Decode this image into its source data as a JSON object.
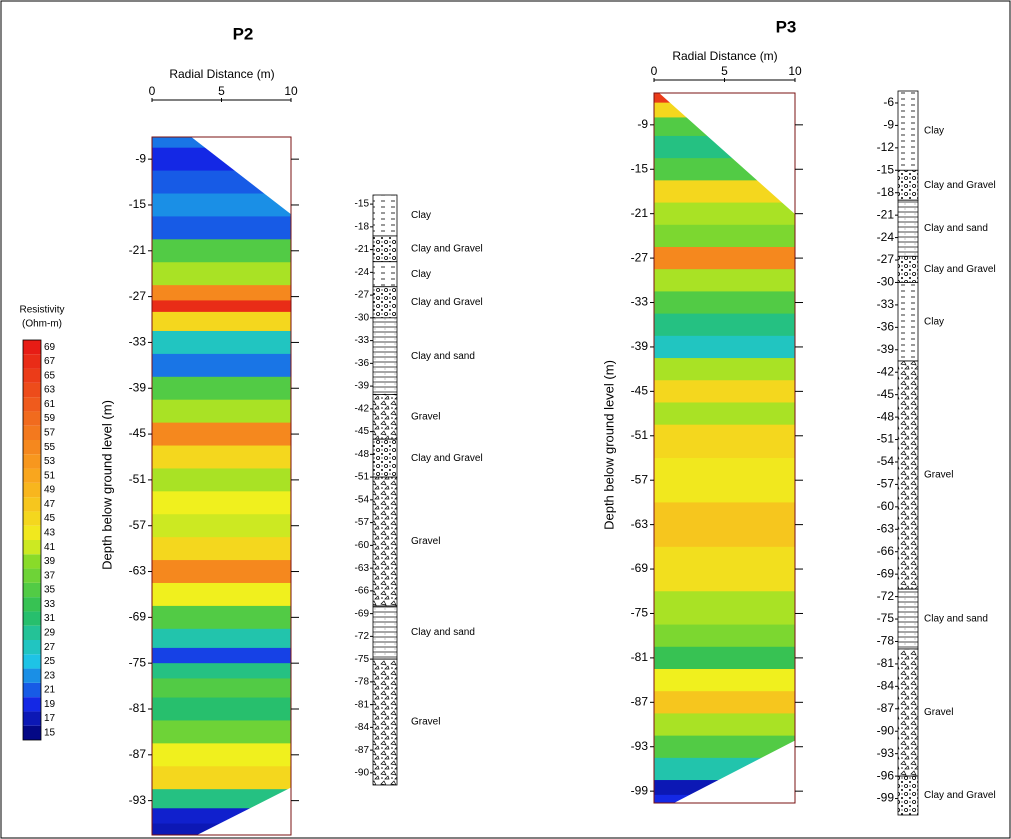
{
  "colorbar": {
    "title": "Resistivity",
    "unit": "(Ohm-m)",
    "ticks": [
      15,
      17,
      19,
      21,
      23,
      25,
      27,
      29,
      31,
      33,
      35,
      37,
      39,
      41,
      43,
      45,
      47,
      49,
      51,
      53,
      55,
      57,
      59,
      61,
      63,
      65,
      67,
      69
    ],
    "range": [
      14,
      70
    ]
  },
  "panels": [
    {
      "title": "P2",
      "x_label": "Radial Distance (m)",
      "xticks": [
        0,
        5,
        10
      ],
      "xlim": [
        0,
        10
      ],
      "y_label": "Depth below ground level (m)",
      "yticks": [
        -9,
        -15,
        -21,
        -27,
        -33,
        -39,
        -45,
        -51,
        -57,
        -63,
        -69,
        -75,
        -81,
        -87,
        -93
      ],
      "ylim": [
        -6.1,
        -97.5
      ],
      "profile": {
        "depth": [
          -6,
          -9,
          -12,
          -15,
          -18,
          -21,
          -24,
          -27,
          -28,
          -30,
          -33,
          -36,
          -39,
          -42,
          -45,
          -48,
          -51,
          -54,
          -57,
          -60,
          -63,
          -66,
          -69,
          -72,
          -74,
          -76,
          -78,
          -81,
          -84,
          -87,
          -90,
          -93,
          -95,
          -97
        ],
        "value": [
          22,
          19,
          21,
          23,
          21,
          35,
          40,
          55,
          67,
          45,
          27,
          22,
          35,
          40,
          55,
          45,
          40,
          42,
          41,
          45,
          55,
          42,
          35,
          28,
          20,
          30,
          35,
          31,
          37,
          42,
          45,
          30,
          18,
          17
        ]
      },
      "log": {
        "ticks": [
          -15,
          -18,
          -21,
          -24,
          -27,
          -30,
          -33,
          -36,
          -39,
          -42,
          -45,
          -48,
          -51,
          -54,
          -57,
          -60,
          -63,
          -66,
          -69,
          -72,
          -75,
          -78,
          -81,
          -84,
          -87,
          -90
        ],
        "range": [
          -13.8,
          -91.6
        ],
        "layers": [
          {
            "label": "Clay",
            "top": -13.8,
            "bottom": -19.2
          },
          {
            "label": "Clay and Gravel",
            "top": -19.2,
            "bottom": -22.6
          },
          {
            "label": "Clay",
            "top": -22.6,
            "bottom": -25.9
          },
          {
            "label": "Clay and Gravel",
            "top": -25.9,
            "bottom": -30
          },
          {
            "label": "Clay and sand",
            "top": -30,
            "bottom": -40.1
          },
          {
            "label": "Gravel",
            "top": -40.1,
            "bottom": -46
          },
          {
            "label": "Clay and Gravel",
            "top": -46,
            "bottom": -51
          },
          {
            "label": "Gravel",
            "top": -51,
            "bottom": -68
          },
          {
            "label": "Clay and sand",
            "top": -68,
            "bottom": -75
          },
          {
            "label": "Gravel",
            "top": -75,
            "bottom": -91.6
          }
        ]
      }
    },
    {
      "title": "P3",
      "x_label": "Radial Distance (m)",
      "xticks": [
        0,
        5,
        10
      ],
      "xlim": [
        0,
        10
      ],
      "y_label": "Depth below ground level (m)",
      "yticks": [
        -9,
        -15,
        -21,
        -27,
        -33,
        -39,
        -45,
        -51,
        -57,
        -63,
        -69,
        -75,
        -81,
        -87,
        -93,
        -99
      ],
      "ylim": [
        -4.7,
        -100.6
      ],
      "profile": {
        "depth": [
          -5,
          -7,
          -9,
          -12,
          -15,
          -18,
          -21,
          -24,
          -27,
          -30,
          -33,
          -36,
          -39,
          -42,
          -45,
          -48,
          -51,
          -57,
          -63,
          -69,
          -75,
          -78,
          -81,
          -84,
          -87,
          -90,
          -93,
          -96,
          -99,
          -100
        ],
        "value": [
          65,
          45,
          35,
          30,
          35,
          45,
          40,
          38,
          55,
          40,
          35,
          30,
          27,
          40,
          45,
          40,
          45,
          43,
          47,
          44,
          40,
          38,
          33,
          42,
          47,
          40,
          35,
          28,
          17,
          19
        ]
      },
      "log": {
        "ticks": [
          -6,
          -9,
          -12,
          -15,
          -18,
          -21,
          -24,
          -27,
          -30,
          -33,
          -36,
          -39,
          -42,
          -45,
          -48,
          -51,
          -54,
          -57,
          -60,
          -63,
          -66,
          -69,
          -72,
          -75,
          -78,
          -81,
          -84,
          -87,
          -90,
          -93,
          -96,
          -99
        ],
        "range": [
          -4.4,
          -101.2
        ],
        "layers": [
          {
            "label": "Clay",
            "top": -4.4,
            "bottom": -15
          },
          {
            "label": "Clay and Gravel",
            "top": -15,
            "bottom": -19
          },
          {
            "label": "Clay and sand",
            "top": -19,
            "bottom": -26.5
          },
          {
            "label": "Clay and Gravel",
            "top": -26.5,
            "bottom": -30
          },
          {
            "label": "Clay",
            "top": -30,
            "bottom": -40.5
          },
          {
            "label": "Gravel",
            "top": -40.5,
            "bottom": -71
          },
          {
            "label": "Clay and sand",
            "top": -71,
            "bottom": -79
          },
          {
            "label": "Gravel",
            "top": -79,
            "bottom": -96
          },
          {
            "label": "Clay and Gravel",
            "top": -96,
            "bottom": -101.2
          }
        ]
      }
    }
  ]
}
